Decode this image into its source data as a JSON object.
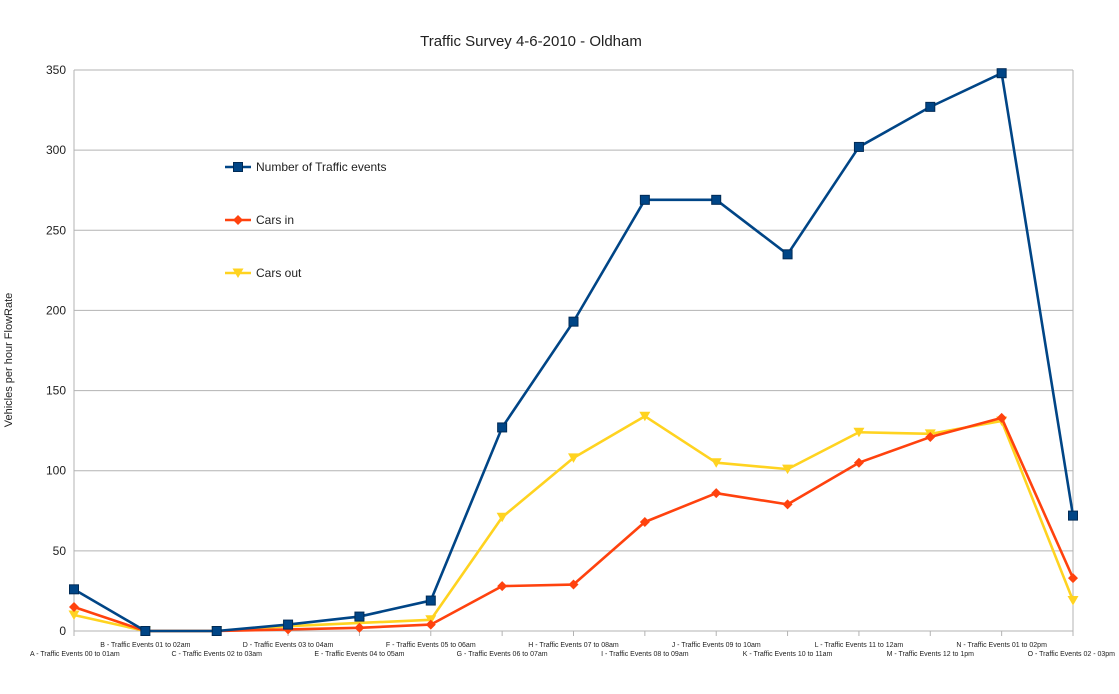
{
  "chart_data": {
    "type": "line",
    "title": "Traffic Survey 4-6-2010 - Oldham",
    "xlabel": "",
    "ylabel": "Vehicles per hour FlowRate",
    "ylim": [
      0,
      350
    ],
    "yticks": [
      0,
      50,
      100,
      150,
      200,
      250,
      300,
      350
    ],
    "grid": true,
    "legend_position": "upper-left inside plot",
    "categories": [
      "A - Traffic Events 00 to 01am",
      "B - Traffic Events 01 to 02am",
      "C - Traffic Events 02 to 03am",
      "D - Traffic Events 03 to 04am",
      "E - Traffic Events 04 to 05am",
      "F - Traffic Events 05 to 06am",
      "G - Traffic Events 06 to 07am",
      "H - Traffic Events 07 to 08am",
      "I - Traffic Events 08 to 09am",
      "J - Traffic Events 09 to 10am",
      "K - Traffic Events 10 to 11am",
      "L - Traffic Events 11 to 12am",
      "M - Traffic Events 12 to 1pm",
      "N - Traffic Events 01 to 02pm",
      "O - Traffic Events 02 - 03pm"
    ],
    "series": [
      {
        "name": "Number of Traffic events",
        "color": "#004586",
        "marker": "square",
        "values": [
          26,
          0,
          0,
          4,
          9,
          19,
          127,
          193,
          269,
          269,
          235,
          302,
          327,
          348,
          72
        ]
      },
      {
        "name": "Cars in",
        "color": "#ff420e",
        "marker": "diamond",
        "values": [
          15,
          0,
          0,
          1,
          2,
          4,
          28,
          29,
          68,
          86,
          79,
          105,
          121,
          133,
          33
        ]
      },
      {
        "name": "Cars out",
        "color": "#ffd320",
        "marker": "triangle-down",
        "values": [
          10,
          0,
          0,
          3,
          5,
          7,
          71,
          108,
          134,
          105,
          101,
          124,
          123,
          131,
          19
        ]
      }
    ]
  }
}
